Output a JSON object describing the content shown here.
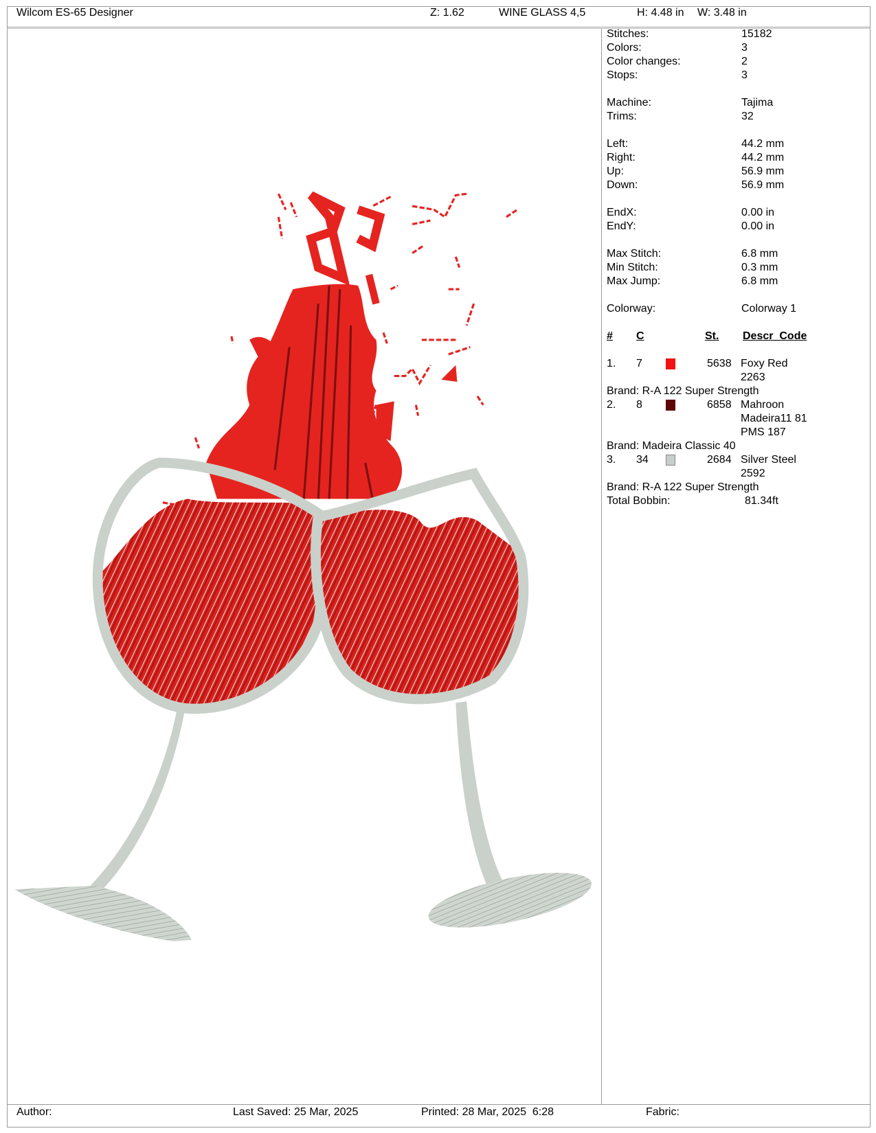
{
  "header": {
    "app_title": "Wilcom ES-65 Designer",
    "zoom": "Z: 1.62",
    "design_name": "WINE GLASS 4,5",
    "height": "H: 4.48 in",
    "width": "W: 3.48 in"
  },
  "stats": [
    {
      "label": "Stitches:",
      "value": "15182"
    },
    {
      "label": "Colors:",
      "value": "3"
    },
    {
      "label": "Color changes:",
      "value": "2"
    },
    {
      "label": "Stops:",
      "value": "3"
    },
    {
      "label": "Machine:",
      "value": "Tajima"
    },
    {
      "label": "Trims:",
      "value": "32"
    },
    {
      "label": "Left:",
      "value": "44.2 mm"
    },
    {
      "label": "Right:",
      "value": "44.2 mm"
    },
    {
      "label": "Up:",
      "value": "56.9 mm"
    },
    {
      "label": "Down:",
      "value": "56.9 mm"
    },
    {
      "label": "EndX:",
      "value": "0.00 in"
    },
    {
      "label": "EndY:",
      "value": "0.00 in"
    },
    {
      "label": "Max Stitch:",
      "value": "6.8 mm"
    },
    {
      "label": "Min Stitch:",
      "value": "0.3 mm"
    },
    {
      "label": "Max Jump:",
      "value": "6.8 mm"
    },
    {
      "label": "Colorway:",
      "value": "Colorway 1"
    }
  ],
  "color_table": {
    "headers": {
      "num": "#",
      "code": "C",
      "stitches": "St.",
      "descr": "Descr_Code"
    },
    "rows": [
      {
        "num": "1.",
        "code": "7",
        "color": "#f21212",
        "stitches": "5638",
        "descr": [
          "Foxy Red",
          "2263"
        ],
        "brand": "Brand: R-A 122 Super Strength"
      },
      {
        "num": "2.",
        "code": "8",
        "color": "#5e0606",
        "stitches": "6858",
        "descr": [
          "Mahroon",
          "Madeira11 81",
          "PMS 187"
        ],
        "brand": "Brand: Madeira Classic 40"
      },
      {
        "num": "3.",
        "code": "34",
        "color": "#c6cdca",
        "stitches": "2684",
        "descr": [
          "Silver Steel",
          "2592"
        ],
        "brand": "Brand: R-A 122 Super Strength"
      }
    ],
    "total_bobbin_label": "Total Bobbin:",
    "total_bobbin_value": "81.34ft"
  },
  "footer": {
    "author": "Author:",
    "last_saved": "Last Saved: 25 Mar, 2025",
    "printed": "Printed: 28 Mar, 2025  6:28",
    "fabric": "Fabric:"
  },
  "colors": {
    "wine": "#e52420",
    "wine_dark": "#6b0d0d",
    "glass": "#c9d1ca",
    "border": "#9a9a9a"
  }
}
